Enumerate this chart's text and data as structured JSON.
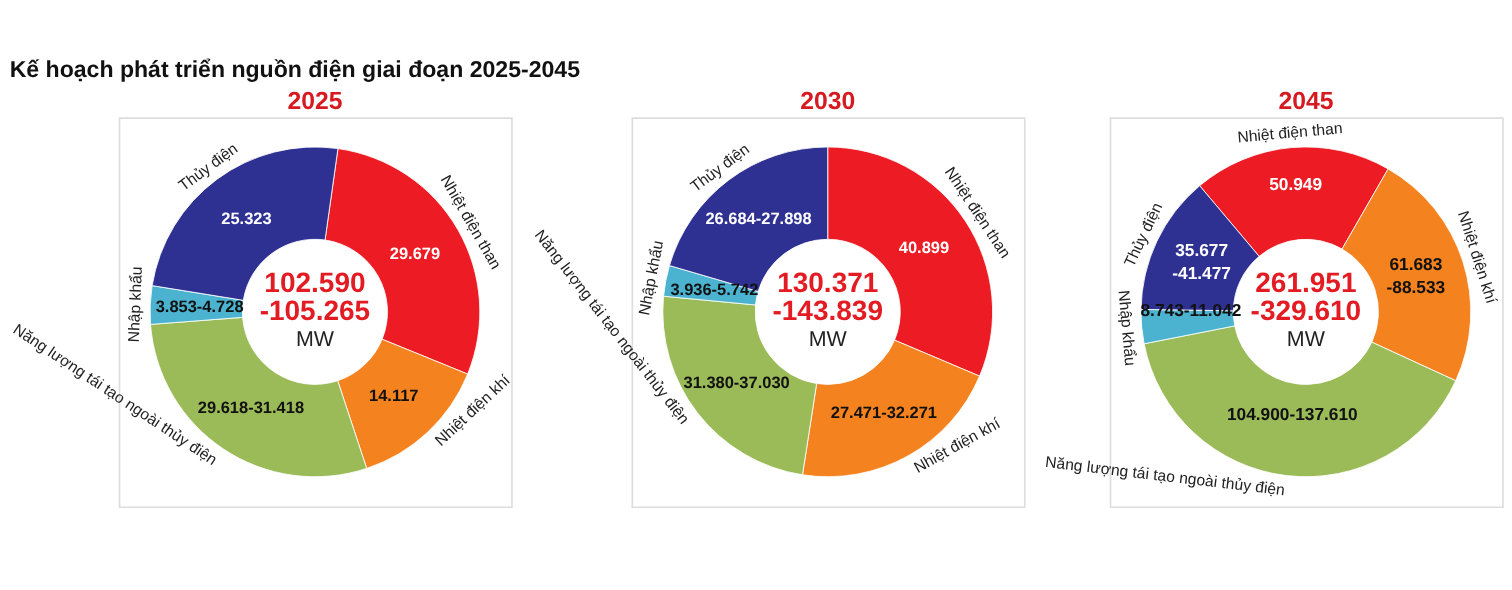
{
  "chart_data": [
    {
      "type": "donut",
      "title": "Kế hoạch phát triển nguồn điện giai đoạn 2025-2045",
      "subtitle": "2025",
      "categories": [
        "Nhiệt điện than",
        "Nhiệt điện khí",
        "Năng lượng tái tạo ngoài thủy điện",
        "Nhập khẩu",
        "Thủy điện"
      ],
      "values": [
        29.679,
        14.117,
        29.618,
        3.853,
        25.323
      ],
      "value_labels": [
        "29.679",
        "14.117",
        "29.618-31.418",
        "3.853-4.728",
        "25.323"
      ],
      "colors": [
        "#ed1c24",
        "#f4821f",
        "#9bbb59",
        "#4bb3cf",
        "#2e3192"
      ],
      "annotations": [
        "102.590",
        "-105.265",
        "MW"
      ]
    },
    {
      "type": "donut",
      "subtitle": "2030",
      "categories": [
        "Nhiệt điện than",
        "Nhiệt điện khí",
        "Năng lượng tái tạo ngoài thủy điện",
        "Nhập khẩu",
        "Thủy điện"
      ],
      "values": [
        40.899,
        27.471,
        31.38,
        3.936,
        26.684
      ],
      "value_labels": [
        "40.899",
        "27.471-32.271",
        "31.380-37.030",
        "3.936-5.742",
        "26.684-27.898"
      ],
      "colors": [
        "#ed1c24",
        "#f4821f",
        "#9bbb59",
        "#4bb3cf",
        "#2e3192"
      ],
      "annotations": [
        "130.371",
        "-143.839",
        "MW"
      ]
    },
    {
      "type": "donut",
      "subtitle": "2045",
      "categories": [
        "Nhiệt điện than",
        "Nhiệt điện khí",
        "Năng lượng tái tạo ngoài thủy điện",
        "Nhập khẩu",
        "Thủy điện"
      ],
      "values": [
        50.949,
        61.683,
        104.9,
        8.743,
        35.677
      ],
      "value_labels": [
        "50.949",
        "61.683 -88.533",
        "104.900-137.610",
        "8.743-11.042",
        "35.677 -41.477"
      ],
      "colors": [
        "#ed1c24",
        "#f4821f",
        "#9bbb59",
        "#4bb3cf",
        "#2e3192"
      ],
      "annotations": [
        "261.951",
        "-329.610",
        "MW"
      ]
    }
  ]
}
